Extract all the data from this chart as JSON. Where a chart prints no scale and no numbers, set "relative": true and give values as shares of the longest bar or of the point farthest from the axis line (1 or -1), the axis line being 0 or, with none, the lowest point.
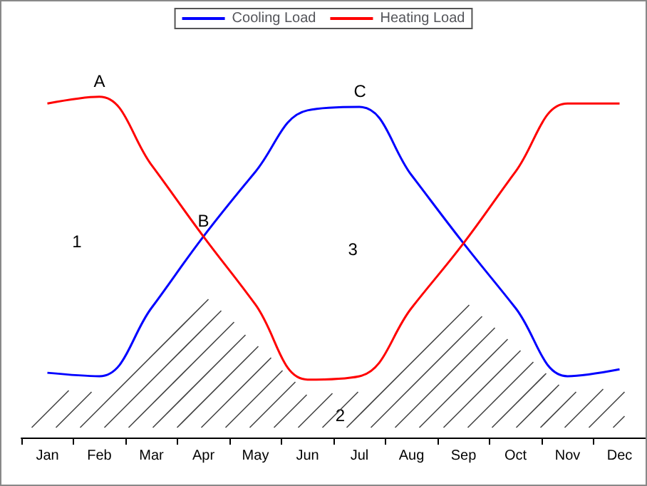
{
  "chart_data": {
    "type": "line",
    "relative": true,
    "categories": [
      "Jan",
      "Feb",
      "Mar",
      "Apr",
      "May",
      "Jun",
      "Jul",
      "Aug",
      "Sep",
      "Oct",
      "Nov",
      "Dec"
    ],
    "series": [
      {
        "name": "Cooling Load",
        "color": "#0000ff",
        "values": [
          0.19,
          0.18,
          0.38,
          0.59,
          0.78,
          0.96,
          0.97,
          0.77,
          0.57,
          0.38,
          0.18,
          0.2
        ]
      },
      {
        "name": "Heating Load",
        "color": "#ff0000",
        "values": [
          0.98,
          1.0,
          0.8,
          0.59,
          0.39,
          0.17,
          0.18,
          0.38,
          0.57,
          0.78,
          0.98,
          0.98
        ]
      }
    ],
    "annotations": [
      {
        "text": "A",
        "x": "Feb",
        "y": 1.0
      },
      {
        "text": "B",
        "x": "Apr",
        "y": 0.59
      },
      {
        "text": "C",
        "x": "Jul",
        "y": 0.97
      },
      "1",
      "2",
      "3"
    ],
    "legend": "top",
    "grid": false,
    "marker": "none",
    "line_style": "solid"
  }
}
